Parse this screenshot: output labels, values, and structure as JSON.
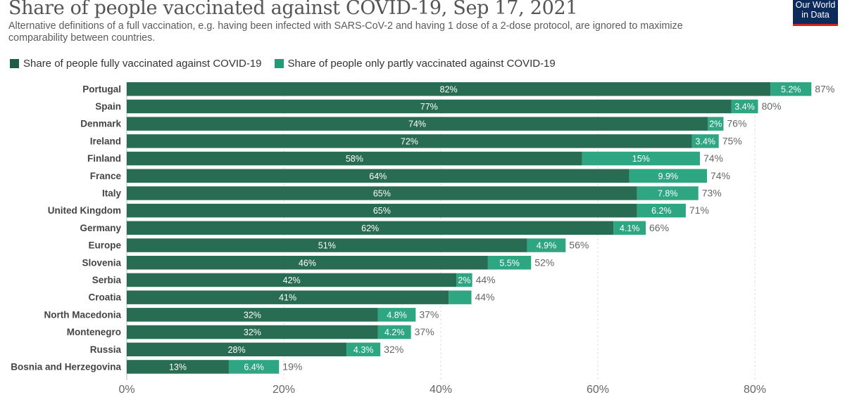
{
  "header": {
    "title": "Share of people vaccinated against COVID-19, Sep 17, 2021",
    "subtitle": "Alternative definitions of a full vaccination, e.g. having been infected with SARS-CoV-2 and having 1 dose of a 2-dose protocol, are ignored to maximize comparability between countries.",
    "logo_line1": "Our World",
    "logo_line2": "in Data"
  },
  "colors": {
    "fully": "#286c53",
    "partly": "#2ea682",
    "logo_bg": "#0d2a5c",
    "logo_accent": "#ce261e"
  },
  "chart_data": {
    "type": "bar",
    "orientation": "horizontal",
    "stacked": true,
    "title": "Share of people vaccinated against COVID-19, Sep 17, 2021",
    "xlabel": "",
    "ylabel": "",
    "xlim": [
      0,
      87
    ],
    "x_ticks": [
      "0%",
      "20%",
      "40%",
      "60%",
      "80%"
    ],
    "x_tick_values": [
      0,
      20,
      40,
      60,
      80
    ],
    "grid": "vertical dashed",
    "legend_position": "top-left",
    "categories": [
      "Portugal",
      "Spain",
      "Denmark",
      "Ireland",
      "Finland",
      "France",
      "Italy",
      "United Kingdom",
      "Germany",
      "Europe",
      "Slovenia",
      "Serbia",
      "Croatia",
      "North Macedonia",
      "Montenegro",
      "Russia",
      "Bosnia and Herzegovina"
    ],
    "series": [
      {
        "name": "Share of people fully vaccinated against COVID-19",
        "values": [
          82,
          77,
          74,
          72,
          58,
          64,
          65,
          65,
          62,
          51,
          46,
          42,
          41,
          32,
          32,
          28,
          13
        ],
        "labels": [
          "82%",
          "77%",
          "74%",
          "72%",
          "58%",
          "64%",
          "65%",
          "65%",
          "62%",
          "51%",
          "46%",
          "42%",
          "41%",
          "32%",
          "32%",
          "28%",
          "13%"
        ]
      },
      {
        "name": "Share of people only partly vaccinated against COVID-19",
        "values": [
          5.2,
          3.4,
          2,
          3.4,
          15,
          9.9,
          7.8,
          6.2,
          4.1,
          4.9,
          5.5,
          2,
          2.9,
          4.8,
          4.2,
          4.3,
          6.4
        ],
        "labels": [
          "5.2%",
          "3.4%",
          "2%",
          "3.4%",
          "15%",
          "9.9%",
          "7.8%",
          "6.2%",
          "4.1%",
          "4.9%",
          "5.5%",
          "2%",
          "",
          "4.8%",
          "4.2%",
          "4.3%",
          "6.4%"
        ]
      }
    ],
    "totals": [
      "87%",
      "80%",
      "76%",
      "75%",
      "74%",
      "74%",
      "73%",
      "71%",
      "66%",
      "56%",
      "52%",
      "44%",
      "44%",
      "37%",
      "37%",
      "32%",
      "19%"
    ]
  }
}
